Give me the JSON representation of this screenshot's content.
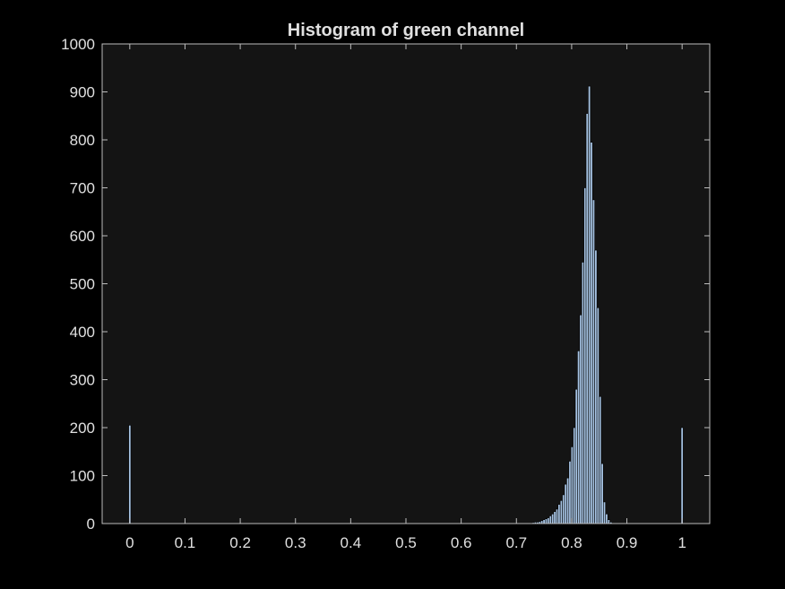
{
  "chart_data": {
    "type": "bar",
    "title": "Histogram of green channel",
    "xlabel": "",
    "ylabel": "",
    "xlim": [
      -0.05,
      1.05
    ],
    "ylim": [
      0,
      1000
    ],
    "xticks": [
      0,
      0.1,
      0.2,
      0.3,
      0.4,
      0.5,
      0.6,
      0.7,
      0.8,
      0.9,
      1
    ],
    "xtick_labels": [
      "0",
      "0.1",
      "0.2",
      "0.3",
      "0.4",
      "0.5",
      "0.6",
      "0.7",
      "0.8",
      "0.9",
      "1"
    ],
    "yticks": [
      0,
      100,
      200,
      300,
      400,
      500,
      600,
      700,
      800,
      900,
      1000
    ],
    "ytick_labels": [
      "0",
      "100",
      "200",
      "300",
      "400",
      "500",
      "600",
      "700",
      "800",
      "900",
      "1000"
    ],
    "grid": false,
    "bin_width": 0.00390625,
    "x": [
      0,
      0.7305,
      0.7344,
      0.7383,
      0.7422,
      0.7461,
      0.75,
      0.7539,
      0.7578,
      0.7617,
      0.7656,
      0.7695,
      0.7734,
      0.7773,
      0.7813,
      0.7852,
      0.7891,
      0.793,
      0.7969,
      0.8008,
      0.8047,
      0.8086,
      0.8125,
      0.8164,
      0.8203,
      0.8242,
      0.8281,
      0.832,
      0.8359,
      0.8398,
      0.8438,
      0.8477,
      0.8516,
      0.8555,
      0.8594,
      0.8633,
      0.8672,
      0.8711,
      1
    ],
    "values": [
      205,
      2,
      3,
      3,
      4,
      6,
      8,
      10,
      12,
      16,
      20,
      25,
      30,
      40,
      48,
      60,
      82,
      95,
      130,
      160,
      200,
      280,
      360,
      435,
      545,
      700,
      855,
      912,
      795,
      675,
      570,
      450,
      265,
      125,
      45,
      20,
      8,
      3,
      200
    ],
    "colors": {
      "figure_background": "#000000",
      "axes_background": "#141414",
      "axes_edge": "#bdbdbd",
      "text": "#e0e0e0",
      "bar_face": "#a7c4e4",
      "bar_edge": "#000000"
    }
  }
}
